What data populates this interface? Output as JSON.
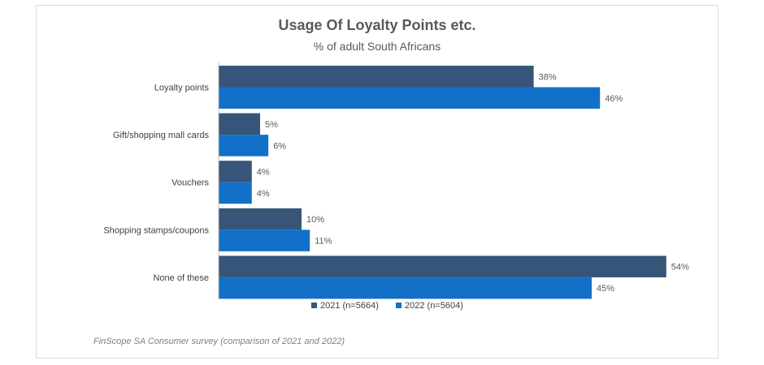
{
  "chart_data": {
    "type": "bar",
    "orientation": "horizontal",
    "title": "Usage Of Loyalty Points etc.",
    "subtitle": "% of adult South Africans",
    "source": "FinScope SA Consumer survey (comparison of 2021 and 2022)",
    "categories": [
      "Loyalty points",
      "Gift/shopping mall cards",
      "Vouchers",
      "Shopping stamps/coupons",
      "None of these"
    ],
    "series": [
      {
        "name": "2021 (n=5664)",
        "color": "#365578",
        "values": [
          38,
          5,
          4,
          10,
          54
        ],
        "labels": [
          "38%",
          "5%",
          "4%",
          "10%",
          "54%"
        ]
      },
      {
        "name": "2022 (n=5604)",
        "color": "#1270c8",
        "values": [
          46,
          6,
          4,
          11,
          45
        ],
        "labels": [
          "46%",
          "6%",
          "4%",
          "11%",
          "45%"
        ]
      }
    ],
    "xlim": [
      0,
      60
    ],
    "grid": false,
    "legend_position": "bottom"
  }
}
